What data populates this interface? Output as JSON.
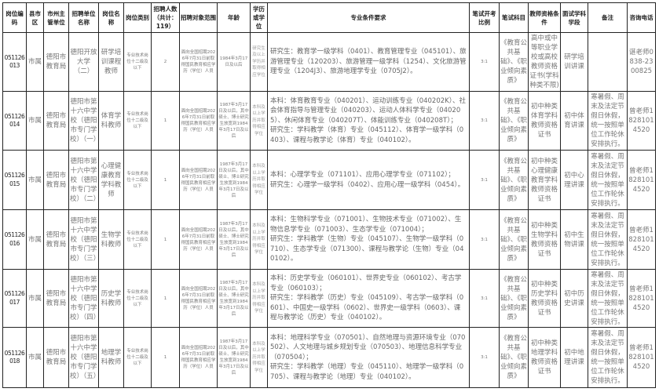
{
  "headers": [
    "岗位编码",
    "县市区",
    "市州主管单位",
    "招聘单位名称",
    "岗位名称",
    "岗位类别",
    "招聘人数（共计：119）",
    "招聘对象范围",
    "年龄",
    "学历或学位",
    "专业条件要求",
    "笔试开考比例",
    "笔试科目",
    "教师资格条件",
    "面试学科学段",
    "备注",
    "咨询电话"
  ],
  "rows": [
    {
      "code": "051126013",
      "county": "市属",
      "dept": "德阳市教育局",
      "unit": "德阳开放大学（二）",
      "post": "研学培训课程教师",
      "category": "专业技术岗位十二级及以下",
      "count": "2",
      "scope": "面向全国招聘2026年7月31日前取得国民教育相应学历（学位）人员",
      "age": "1984年3月17日及以后",
      "edu": "研究生及以上学历并取得相应学位",
      "req": "研究生：教育学一级学科（0401）、教育管理专业（045101）、旅游管理专业（120203）、旅游管理一级学科（1254）、文化旅游管理专业（1204J3）、旅游地理学专业（0705J2）。",
      "ratio": "3:1",
      "exam": "《教育公共基础》、《职业倾向素质》",
      "cert": "高中或中等职业学校或高校教师资格证书(学科种类不限)",
      "interview": "研学培训讲课",
      "note": "",
      "phone": "谌老师0838-2300825"
    },
    {
      "code": "051126014",
      "county": "市属",
      "dept": "德阳市教育局",
      "unit": "德阳市第十六中学校（德阳市专门学校）（一）",
      "post": "体育学科教师",
      "category": "专业技术岗位十二级及以下",
      "count": "1",
      "scope": "面向全国招聘2026年7月31日前取得国民教育相应学历（学位）人员",
      "age": "1987年3月17日及以后，其中硕士、博士研究生放宽到1984年3月17日及以后",
      "edu": "本科及以上学历并取得相应学位",
      "req": "本科：体育教育专业（040201）、运动训练专业（040202K）、社会体育指导与管理专业（040203）、运动人体科学专业（040205）、休闲体育专业（040207T）、体能训练专业（040208T）；\n研究生：学科教学（体育）专业（045112）、体育学一级学科（0403）、课程与教学论（体育）专业（040102）。",
      "ratio": "3:1",
      "exam": "《教育公共基础》、《职业倾向素质》",
      "cert": "初中种类体育学科教师资格证书",
      "interview": "初中体育讲课",
      "note": "寒暑假、周末及法定节假日休假，统一按照单位工作轮休安排执行。",
      "phone": "曾老师18281014520"
    },
    {
      "code": "051126015",
      "county": "市属",
      "dept": "德阳市教育局",
      "unit": "德阳市第十六中学校（德阳市专门学校）（二）",
      "post": "心理健康教育学科教师",
      "category": "专业技术岗位十二级及以下",
      "count": "1",
      "scope": "面向全国招聘2026年7月31日前取得国民教育相应学历（学位）人员",
      "age": "1987年3月17日及以后，其中硕士、博士研究生放宽到1984年3月17日及以后",
      "edu": "本科及以上学历并取得相应学位",
      "req": "本科：心理学专业（071101）、应用心理学专业（071102）；\n研究生：心理学一级学科（0402）、应用心理一级学科（0454）。",
      "ratio": "3:1",
      "exam": "《教育公共基础》、《职业倾向素质》",
      "cert": "初中种类心理健康教育学科教师资格证书",
      "interview": "初中心理讲课",
      "note": "寒暑假、周末及法定节假日休假，统一按照单位工作轮休安排执行。",
      "phone": "曾老师18281014520"
    },
    {
      "code": "051126016",
      "county": "市属",
      "dept": "德阳市教育局",
      "unit": "德阳市第十六中学校（德阳市专门学校）（三）",
      "post": "生物学科教师",
      "category": "专业技术岗位十二级及以下",
      "count": "1",
      "scope": "面向全国招聘2026年7月31日前取得国民教育相应学历（学位）人员",
      "age": "1987年3月17日及以后，其中硕士、博士研究生放宽到1984年3月17日及以后",
      "edu": "本科及以上学历并取得相应学位",
      "req": "本科：生物科学专业（071001）、生物技术专业（071002）、生物信息学专业（071003）、生态学专业（071004）；\n研究生：学科教学（生物）专业（045107）、生物学一级学科（0710）、生态学专业（071300）、课程与教学论（生物）专业（040102）。",
      "ratio": "3:1",
      "exam": "《教育公共基础》、《职业倾向素质》",
      "cert": "初中种类生物学科教师资格证书",
      "interview": "初中生物讲课",
      "note": "寒暑假、周末及法定节假日休假，统一按照单位工作轮休安排执行。",
      "phone": "曾老师18281014520"
    },
    {
      "code": "051126017",
      "county": "市属",
      "dept": "德阳市教育局",
      "unit": "德阳市第十六中学校（德阳市专门学校）（四）",
      "post": "历史学科教师",
      "category": "专业技术岗位十二级及以下",
      "count": "1",
      "scope": "面向全国招聘2026年7月31日前取得国民教育相应学历（学位）人员",
      "age": "1987年3月17日及以后，其中硕士、博士研究生放宽到1984年3月17日及以后",
      "edu": "本科及以上学历并取得相应学位",
      "req": "本科：历史学专业（060101）、世界史专业（060102）、考古学专业（060103）；\n研究生：学科教学（历史）专业（045109）、考古学一级学科（0601）、中国史一级学科（0602）、世界史一级学科（0603）、课程与教学论（历史）专业（040102）。",
      "ratio": "3:1",
      "exam": "《教育公共基础》、《职业倾向素质》",
      "cert": "初中种类历史学科教师资格证书",
      "interview": "初中历史讲课",
      "note": "寒暑假、周末及法定节假日休假，统一按照单位工作轮休安排执行。",
      "phone": "曾老师18281014520"
    },
    {
      "code": "051126018",
      "county": "市属",
      "dept": "德阳市教育局",
      "unit": "德阳市第十六中学校（德阳市专门学校）（五）",
      "post": "地理学科教师",
      "category": "专业技术岗位十二级及以下",
      "count": "1",
      "scope": "面向全国招聘2026年7月31日前取得国民教育相应学历（学位）人员",
      "age": "1987年3月17日及以后，其中硕士、博士研究生放宽到1984年3月17日及以后",
      "edu": "本科及以上学历并取得相应学位",
      "req": "本科：地理科学专业（070501）、自然地理与资源环境专业（070502）、人文地理与城乡规划专业（070503）、地理信息科学专业（070504）；\n研究生：学科教学（地理）专业（045110）、地理学一级学科（0705）、课程与教学论（地理）专业（040102）。",
      "ratio": "3:1",
      "exam": "《教育公共基础》、《职业倾向素质》",
      "cert": "初中种类地理学科教师资格证书",
      "interview": "初中地理讲课",
      "note": "寒暑假、周末及法定节假日休假，统一按照单位工作轮休安排执行。",
      "phone": "曾老师18281014520"
    }
  ]
}
